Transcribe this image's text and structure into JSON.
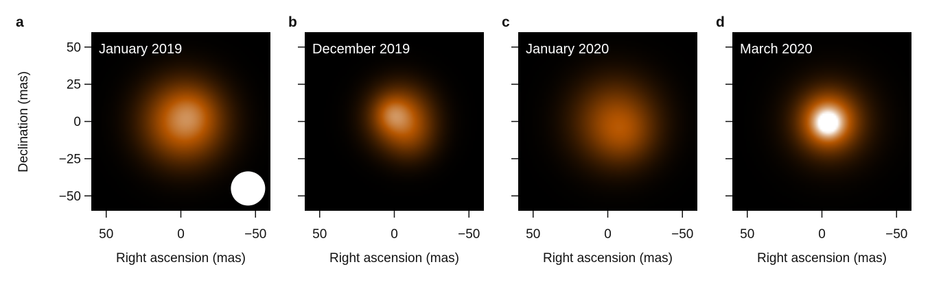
{
  "figure": {
    "ylabel": "Declination (mas)",
    "xlabel": "Right ascension (mas)"
  },
  "chart_data": [
    {
      "type": "heatmap",
      "panel_label": "a",
      "title": "January 2019",
      "xlabel": "Right ascension (mas)",
      "ylabel": "Declination (mas)",
      "xlim": [
        60,
        -60
      ],
      "ylim": [
        -60,
        60
      ],
      "x_ticks": [
        50,
        0,
        -50
      ],
      "x_tick_labels": [
        "50",
        "0",
        "−50"
      ],
      "y_ticks": [
        50,
        25,
        0,
        -25,
        -50
      ],
      "y_tick_labels": [
        "50",
        "25",
        "0",
        "−25",
        "−50"
      ],
      "colormap": [
        "#000000",
        "#b65600",
        "#ffffff"
      ],
      "blobs": [
        {
          "x": -2,
          "y": 0,
          "sigma": 19,
          "intensity": 0.62
        },
        {
          "x": -8,
          "y": 6,
          "sigma": 10,
          "intensity": 0.08
        }
      ],
      "beam": {
        "x": -45,
        "y": -45,
        "diameter": 23,
        "color": "#ffffff"
      }
    },
    {
      "type": "heatmap",
      "panel_label": "b",
      "title": "December 2019",
      "xlabel": "Right ascension (mas)",
      "xlim": [
        60,
        -60
      ],
      "ylim": [
        -60,
        60
      ],
      "x_ticks": [
        50,
        0,
        -50
      ],
      "x_tick_labels": [
        "50",
        "0",
        "−50"
      ],
      "y_ticks": [
        50,
        25,
        0,
        -25,
        -50
      ],
      "colormap": [
        "#000000",
        "#b65600",
        "#ffffff"
      ],
      "blobs": [
        {
          "x": -4,
          "y": 3,
          "sigma": 15,
          "intensity": 0.5
        },
        {
          "x": 2,
          "y": 5,
          "sigma": 8,
          "intensity": 0.18
        },
        {
          "x": -12,
          "y": -12,
          "sigma": 12,
          "intensity": 0.14
        }
      ]
    },
    {
      "type": "heatmap",
      "panel_label": "c",
      "title": "January 2020",
      "xlabel": "Right ascension (mas)",
      "xlim": [
        60,
        -60
      ],
      "ylim": [
        -60,
        60
      ],
      "x_ticks": [
        50,
        0,
        -50
      ],
      "x_tick_labels": [
        "50",
        "0",
        "−50"
      ],
      "y_ticks": [
        50,
        25,
        0,
        -25,
        -50
      ],
      "colormap": [
        "#000000",
        "#b65600",
        "#ffffff"
      ],
      "blobs": [
        {
          "x": -5,
          "y": 0,
          "sigma": 20,
          "intensity": 0.42
        },
        {
          "x": -12,
          "y": -10,
          "sigma": 13,
          "intensity": 0.12
        }
      ]
    },
    {
      "type": "heatmap",
      "panel_label": "d",
      "title": "March 2020",
      "xlabel": "Right ascension (mas)",
      "xlim": [
        60,
        -60
      ],
      "ylim": [
        -60,
        60
      ],
      "x_ticks": [
        50,
        0,
        -50
      ],
      "x_tick_labels": [
        "50",
        "0",
        "−50"
      ],
      "y_ticks": [
        50,
        25,
        0,
        -25,
        -50
      ],
      "colormap": [
        "#000000",
        "#b65600",
        "#ffffff"
      ],
      "blobs": [
        {
          "x": -4,
          "y": -1,
          "sigma": 5,
          "intensity": 0.55
        },
        {
          "x": -4,
          "y": 0,
          "sigma": 12,
          "intensity": 0.6
        },
        {
          "x": -6,
          "y": 0,
          "sigma": 20,
          "intensity": 0.25
        }
      ]
    }
  ]
}
